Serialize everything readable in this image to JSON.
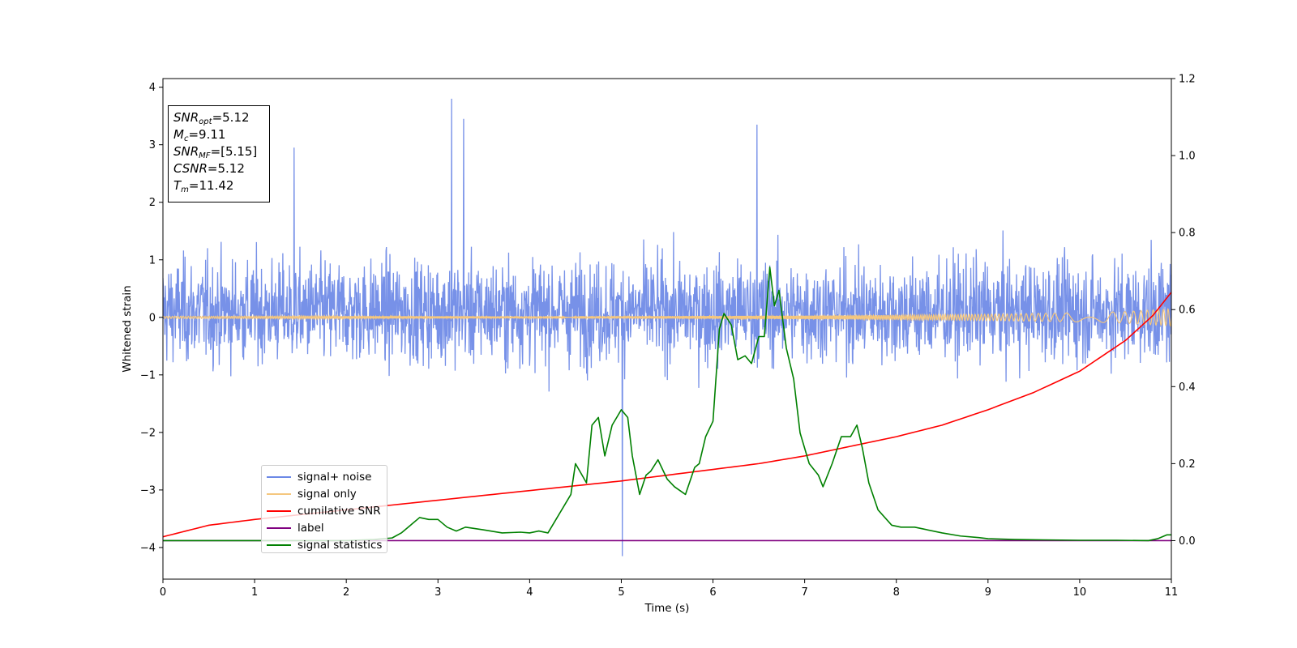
{
  "chart_data": {
    "type": "line",
    "title": "",
    "xlabel": "Time (s)",
    "ylabel": "Whitened strain",
    "y2label": "",
    "xlim": [
      0,
      11
    ],
    "ylim": [
      -4.55,
      4.15
    ],
    "y2lim": [
      -0.1,
      1.2
    ],
    "xticks": [
      "0",
      "1",
      "2",
      "3",
      "4",
      "5",
      "6",
      "7",
      "8",
      "9",
      "10",
      "11"
    ],
    "yticks": [
      "−4",
      "−3",
      "−2",
      "−1",
      "0",
      "1",
      "2",
      "3",
      "4"
    ],
    "y2ticks": [
      "0.0",
      "0.2",
      "0.4",
      "0.6",
      "0.8",
      "1.0",
      "1.2"
    ],
    "legend_position": "lower-left",
    "annotation": [
      {
        "label": "SNR",
        "sub": "opt",
        "value": "=5.12"
      },
      {
        "label": "M",
        "sub": "c",
        "value": "=9.11"
      },
      {
        "label": "SNR",
        "sub": "MF",
        "value": "=[5.15]"
      },
      {
        "label": "CSNR",
        "sub": "",
        "value": "=5.12"
      },
      {
        "label": "T",
        "sub": "m",
        "value": "=11.42"
      }
    ],
    "series": [
      {
        "name": "signal+ noise",
        "color": "#6b88e6",
        "axis": "left",
        "description_values": {
          "mean": 0.1,
          "typical_range": [
            -1.8,
            2.0
          ],
          "peaks": [
            [
              3.15,
              3.8
            ],
            [
              5.01,
              -4.15
            ],
            [
              6.48,
              3.35
            ],
            [
              1.43,
              2.95
            ],
            [
              3.28,
              3.45
            ]
          ]
        }
      },
      {
        "name": "signal only",
        "color": "#f5c77e",
        "axis": "left",
        "envelope": {
          "x": [
            0,
            4,
            6,
            7,
            8,
            9,
            10,
            10.5,
            11
          ],
          "amp": [
            0.02,
            0.02,
            0.025,
            0.03,
            0.04,
            0.055,
            0.08,
            0.1,
            0.15
          ]
        }
      },
      {
        "name": "cumilative SNR",
        "color": "#ff0000",
        "axis": "right",
        "x": [
          0,
          0.5,
          1,
          2,
          3,
          4,
          5,
          6,
          6.5,
          7,
          7.5,
          8,
          8.5,
          9,
          9.5,
          10,
          10.5,
          10.8,
          11
        ],
        "y": [
          0.01,
          0.04,
          0.055,
          0.08,
          0.105,
          0.13,
          0.155,
          0.185,
          0.2,
          0.22,
          0.245,
          0.27,
          0.3,
          0.34,
          0.385,
          0.44,
          0.52,
          0.585,
          0.645
        ]
      },
      {
        "name": "label",
        "color": "#800080",
        "axis": "right",
        "x": [
          0,
          11
        ],
        "y": [
          0,
          0
        ]
      },
      {
        "name": "signal statistics",
        "color": "#008000",
        "axis": "right",
        "x": [
          0,
          0.5,
          1,
          1.5,
          2,
          2.3,
          2.5,
          2.6,
          2.7,
          2.8,
          2.9,
          3.0,
          3.1,
          3.2,
          3.3,
          3.5,
          3.7,
          3.9,
          4.0,
          4.1,
          4.2,
          4.3,
          4.45,
          4.5,
          4.62,
          4.68,
          4.75,
          4.82,
          4.9,
          5.0,
          5.07,
          5.12,
          5.2,
          5.27,
          5.32,
          5.4,
          5.5,
          5.58,
          5.7,
          5.8,
          5.85,
          5.92,
          6.0,
          6.07,
          6.12,
          6.2,
          6.27,
          6.35,
          6.42,
          6.5,
          6.56,
          6.62,
          6.67,
          6.72,
          6.8,
          6.88,
          6.95,
          7.05,
          7.15,
          7.2,
          7.3,
          7.4,
          7.5,
          7.57,
          7.63,
          7.7,
          7.8,
          7.95,
          8.05,
          8.2,
          8.3,
          8.5,
          8.7,
          8.9,
          9.0,
          9.3,
          9.6,
          10.0,
          10.4,
          10.75,
          10.85,
          10.95,
          11.0
        ],
        "y": [
          0.0,
          0.0,
          0.0,
          0.0,
          0.0,
          0.003,
          0.007,
          0.02,
          0.04,
          0.06,
          0.055,
          0.055,
          0.035,
          0.025,
          0.035,
          0.028,
          0.02,
          0.022,
          0.02,
          0.025,
          0.02,
          0.06,
          0.12,
          0.2,
          0.15,
          0.3,
          0.32,
          0.22,
          0.3,
          0.34,
          0.32,
          0.22,
          0.12,
          0.17,
          0.18,
          0.21,
          0.16,
          0.14,
          0.12,
          0.19,
          0.2,
          0.27,
          0.31,
          0.55,
          0.59,
          0.56,
          0.47,
          0.48,
          0.46,
          0.53,
          0.53,
          0.71,
          0.61,
          0.65,
          0.5,
          0.42,
          0.28,
          0.2,
          0.17,
          0.14,
          0.2,
          0.27,
          0.27,
          0.3,
          0.24,
          0.15,
          0.08,
          0.04,
          0.035,
          0.035,
          0.03,
          0.02,
          0.012,
          0.008,
          0.005,
          0.003,
          0.002,
          0.001,
          0.001,
          0.0,
          0.005,
          0.015,
          0.015
        ]
      }
    ]
  }
}
